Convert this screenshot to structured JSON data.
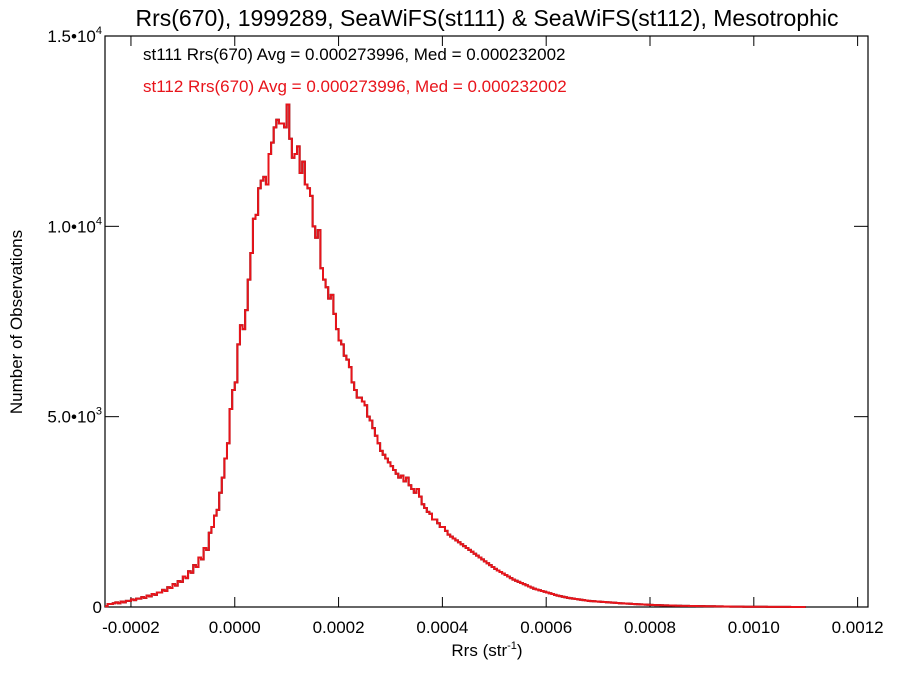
{
  "chart_data": {
    "type": "histogram",
    "title": "Rrs(670), 1999289, SeaWiFS(st111) & SeaWiFS(st112), Mesotrophic",
    "xlabel": "Rrs (str",
    "xlabel_sup": "-1",
    "xlabel_close": ")",
    "ylabel": "Number of Observations",
    "xlim": [
      -0.00025,
      0.00122
    ],
    "ylim": [
      0,
      15000
    ],
    "x_ticks": [
      {
        "value": -0.0002,
        "label": "-0.0002"
      },
      {
        "value": 0.0,
        "label": "0.0000"
      },
      {
        "value": 0.0002,
        "label": "0.0002"
      },
      {
        "value": 0.0004,
        "label": "0.0004"
      },
      {
        "value": 0.0006,
        "label": "0.0006"
      },
      {
        "value": 0.0008,
        "label": "0.0008"
      },
      {
        "value": 0.001,
        "label": "0.0010"
      },
      {
        "value": 0.0012,
        "label": "0.0012"
      }
    ],
    "y_ticks": [
      {
        "value": 0,
        "label": "0",
        "sup": ""
      },
      {
        "value": 5000,
        "label": "5.0•10",
        "sup": "3"
      },
      {
        "value": 10000,
        "label": "1.0•10",
        "sup": "4"
      },
      {
        "value": 15000,
        "label": "1.5•10",
        "sup": "4"
      }
    ],
    "annotations": [
      {
        "text": "st111 Rrs(670) Avg = 0.000273996, Med = 0.000232002",
        "color": "#000000"
      },
      {
        "text": "st112 Rrs(670) Avg = 0.000273996, Med = 0.000232002",
        "color": "#e8141b"
      }
    ],
    "series": [
      {
        "name": "st111",
        "color": "#000000",
        "bin_start": -0.00025,
        "bin_width": 5e-06,
        "counts": [
          20,
          80,
          80,
          100,
          120,
          100,
          140,
          120,
          160,
          160,
          200,
          180,
          220,
          220,
          260,
          240,
          300,
          280,
          340,
          320,
          380,
          380,
          450,
          420,
          520,
          500,
          600,
          560,
          680,
          660,
          800,
          760,
          940,
          900,
          1100,
          1050,
          1300,
          1250,
          1550,
          1500,
          1950,
          2100,
          2400,
          2550,
          3000,
          3400,
          3900,
          4300,
          5200,
          5700,
          5900,
          6900,
          7400,
          7300,
          7800,
          8600,
          9300,
          10200,
          10300,
          11000,
          11200,
          11300,
          11100,
          11900,
          12200,
          12600,
          12800,
          12700,
          12700,
          12600,
          13200,
          12300,
          11800,
          11900,
          12100,
          11400,
          11700,
          11100,
          11000,
          10800,
          10000,
          9700,
          9900,
          8900,
          8600,
          8400,
          8100,
          8200,
          7700,
          7300,
          7000,
          6900,
          6600,
          6500,
          6300,
          5900,
          5700,
          5500,
          5500,
          5400,
          5300,
          5000,
          4900,
          4700,
          4500,
          4300,
          4100,
          4000,
          3900,
          3800,
          3700,
          3600,
          3500,
          3400,
          3450,
          3300,
          3400,
          3200,
          3100,
          3000,
          3100,
          2900,
          2700,
          2600,
          2500,
          2450,
          2300,
          2300,
          2200,
          2100,
          2100,
          2000,
          1900,
          1850,
          1800,
          1750,
          1700,
          1650,
          1600,
          1550,
          1500,
          1450,
          1400,
          1350,
          1300,
          1250,
          1200,
          1150,
          1100,
          1050,
          1000,
          960,
          920,
          880,
          840,
          800,
          760,
          720,
          690,
          660,
          630,
          600,
          570,
          540,
          510,
          480,
          460,
          440,
          420,
          400,
          380,
          360,
          340,
          320,
          300,
          285,
          270,
          255,
          240,
          230,
          220,
          210,
          200,
          190,
          180,
          170,
          160,
          155,
          150,
          145,
          140,
          135,
          130,
          125,
          120,
          115,
          110,
          105,
          100,
          96,
          92,
          88,
          84,
          80,
          76,
          72,
          68,
          65,
          62,
          59,
          56,
          53,
          50,
          48,
          46,
          44,
          42,
          40,
          38,
          36,
          34,
          32,
          30,
          29,
          28,
          27,
          26,
          25,
          24,
          23,
          22,
          21,
          20,
          19,
          18,
          17,
          16,
          15,
          14,
          13,
          12,
          11,
          10,
          10,
          9,
          9,
          8,
          8,
          7,
          7,
          6,
          6,
          5,
          5,
          5,
          4,
          4,
          4,
          3,
          3,
          3,
          2,
          2,
          2,
          1,
          1,
          1,
          1,
          1,
          1
        ]
      },
      {
        "name": "st112",
        "color": "#e8141b",
        "bin_start": -0.00025,
        "bin_width": 5e-06,
        "counts": [
          20,
          80,
          80,
          100,
          120,
          100,
          140,
          120,
          160,
          160,
          200,
          180,
          220,
          220,
          260,
          240,
          300,
          280,
          340,
          320,
          380,
          380,
          450,
          420,
          520,
          500,
          600,
          560,
          680,
          660,
          800,
          760,
          940,
          900,
          1100,
          1050,
          1300,
          1250,
          1550,
          1500,
          1950,
          2100,
          2400,
          2550,
          3000,
          3400,
          3900,
          4300,
          5200,
          5700,
          5900,
          6900,
          7400,
          7300,
          7800,
          8600,
          9300,
          10200,
          10300,
          11000,
          11200,
          11300,
          11100,
          11900,
          12200,
          12600,
          12800,
          12700,
          12700,
          12600,
          13200,
          12300,
          11800,
          11900,
          12100,
          11400,
          11700,
          11100,
          11000,
          10800,
          10000,
          9700,
          9900,
          8900,
          8600,
          8400,
          8100,
          8200,
          7700,
          7300,
          7000,
          6900,
          6600,
          6500,
          6300,
          5900,
          5700,
          5500,
          5500,
          5400,
          5300,
          5000,
          4900,
          4700,
          4500,
          4300,
          4100,
          4000,
          3900,
          3800,
          3700,
          3600,
          3500,
          3400,
          3450,
          3300,
          3400,
          3200,
          3100,
          3000,
          3100,
          2900,
          2700,
          2600,
          2500,
          2450,
          2300,
          2300,
          2200,
          2100,
          2100,
          2000,
          1900,
          1850,
          1800,
          1750,
          1700,
          1650,
          1600,
          1550,
          1500,
          1450,
          1400,
          1350,
          1300,
          1250,
          1200,
          1150,
          1100,
          1050,
          1000,
          960,
          920,
          880,
          840,
          800,
          760,
          720,
          690,
          660,
          630,
          600,
          570,
          540,
          510,
          480,
          460,
          440,
          420,
          400,
          380,
          360,
          340,
          320,
          300,
          285,
          270,
          255,
          240,
          230,
          220,
          210,
          200,
          190,
          180,
          170,
          160,
          155,
          150,
          145,
          140,
          135,
          130,
          125,
          120,
          115,
          110,
          105,
          100,
          96,
          92,
          88,
          84,
          80,
          76,
          72,
          68,
          65,
          62,
          59,
          56,
          53,
          50,
          48,
          46,
          44,
          42,
          40,
          38,
          36,
          34,
          32,
          30,
          29,
          28,
          27,
          26,
          25,
          24,
          23,
          22,
          21,
          20,
          19,
          18,
          17,
          16,
          15,
          14,
          13,
          12,
          11,
          10,
          10,
          9,
          9,
          8,
          8,
          7,
          7,
          6,
          6,
          5,
          5,
          5,
          4,
          4,
          4,
          3,
          3,
          3,
          2,
          2,
          2,
          1,
          1,
          1,
          1,
          1,
          1
        ]
      }
    ]
  }
}
